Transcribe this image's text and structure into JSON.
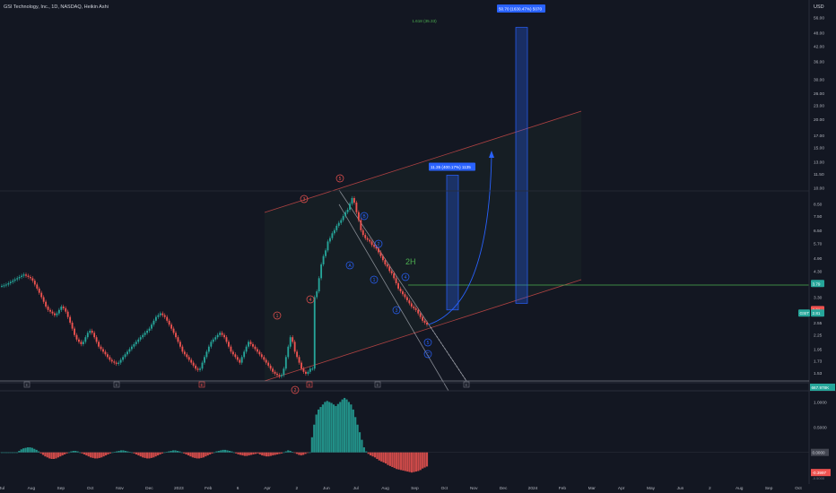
{
  "header": {
    "symbol_line": "GSI Technology, Inc., 1D, NASDAQ, Heikin Ashi",
    "currency": "USD"
  },
  "colors": {
    "background": "#131722",
    "up": "#26a69a",
    "down": "#ef5350",
    "wave": "#2962ff",
    "wave_red": "#ef5350",
    "target_line": "#4caf50",
    "tag_green": "#26a69a",
    "tag_red": "#ef5350",
    "label_blue": "#2962ff"
  },
  "chart_data": [
    {
      "type": "line",
      "subtype": "heikin-ashi candlestick (approximate closes)",
      "symbol": "GSIT",
      "scale": "log",
      "x_labels": [
        "Jul",
        "Aug",
        "Sep",
        "Oct",
        "Nov",
        "Dec",
        "2023",
        "Feb",
        "6",
        "Apr",
        "2",
        "Jun",
        "Jul",
        "Aug",
        "Sep",
        "Oct",
        "Nov",
        "Dec",
        "2024",
        "Feb",
        "Mar",
        "Apr",
        "May",
        "Jun",
        "2",
        "Aug",
        "Sep",
        "Oct"
      ],
      "y_ticks": [
        "56.00",
        "48.00",
        "42.00",
        "36.00",
        "30.00",
        "26.00",
        "23.00",
        "20.00",
        "17.00",
        "15.00",
        "13.00",
        "11.50",
        "10.00",
        "8.50",
        "7.50",
        "6.50",
        "5.70",
        "4.90",
        "4.30",
        "3.30",
        "2.55",
        "2.25",
        "1.95",
        "1.73",
        "1.53"
      ],
      "ylim": [
        1.35,
        60
      ],
      "closes": [
        3.7,
        3.72,
        3.75,
        3.8,
        3.85,
        3.9,
        3.95,
        4.0,
        4.05,
        4.1,
        4.15,
        4.1,
        4.05,
        4.0,
        3.9,
        3.75,
        3.6,
        3.45,
        3.3,
        3.15,
        3.0,
        2.9,
        2.85,
        2.8,
        2.75,
        2.8,
        2.9,
        3.0,
        2.95,
        2.85,
        2.7,
        2.55,
        2.4,
        2.25,
        2.15,
        2.1,
        2.05,
        2.1,
        2.2,
        2.3,
        2.35,
        2.3,
        2.2,
        2.1,
        2.0,
        1.95,
        1.9,
        1.85,
        1.8,
        1.75,
        1.72,
        1.7,
        1.68,
        1.7,
        1.75,
        1.8,
        1.85,
        1.9,
        1.95,
        2.0,
        2.05,
        2.1,
        2.15,
        2.2,
        2.25,
        2.3,
        2.35,
        2.4,
        2.5,
        2.6,
        2.7,
        2.75,
        2.8,
        2.75,
        2.7,
        2.6,
        2.5,
        2.4,
        2.3,
        2.2,
        2.1,
        2.0,
        1.9,
        1.85,
        1.8,
        1.75,
        1.7,
        1.65,
        1.6,
        1.58,
        1.6,
        1.7,
        1.8,
        1.9,
        2.0,
        2.1,
        2.15,
        2.2,
        2.25,
        2.3,
        2.25,
        2.2,
        2.1,
        2.0,
        1.9,
        1.85,
        1.8,
        1.75,
        1.7,
        1.8,
        1.9,
        2.0,
        2.1,
        2.05,
        2.0,
        1.95,
        1.9,
        1.85,
        1.8,
        1.75,
        1.7,
        1.65,
        1.6,
        1.55,
        1.52,
        1.5,
        1.48,
        1.5,
        1.6,
        1.8,
        2.0,
        2.2,
        2.1,
        1.9,
        1.8,
        1.7,
        1.6,
        1.55,
        1.52,
        1.55,
        1.6,
        1.6,
        3.3,
        3.5,
        4.0,
        4.6,
        5.0,
        5.3,
        5.8,
        6.0,
        6.3,
        6.5,
        6.8,
        7.0,
        7.2,
        7.5,
        7.8,
        8.0,
        8.5,
        9.0,
        8.6,
        7.8,
        7.2,
        6.5,
        6.2,
        6.0,
        5.9,
        5.8,
        5.6,
        5.5,
        5.4,
        5.2,
        5.0,
        4.8,
        4.6,
        4.5,
        4.3,
        4.2,
        4.0,
        3.8,
        3.6,
        3.5,
        3.4,
        3.3,
        3.2,
        3.1,
        3.0,
        2.95,
        2.9,
        2.8,
        2.7,
        2.6,
        2.55,
        2.5
      ],
      "wave_labels": [
        "1",
        "2",
        "3",
        "4",
        "5",
        "A",
        "B",
        "C",
        "1",
        "2",
        "3",
        "4",
        "5",
        "A",
        "B",
        "C"
      ],
      "annotations": [
        "2H",
        "1.618 (35.33)"
      ],
      "projections": [
        {
          "label": "11.35 (400.17%) 1135",
          "target": 11.35
        },
        {
          "label": "50.70 (1630.47%) 5070",
          "target": 50.7
        }
      ],
      "price_tags": [
        {
          "text": "3.79",
          "value": 3.79
        },
        {
          "text": "2.91",
          "value": 2.91
        },
        {
          "text": "2.81",
          "value": 2.81
        },
        {
          "text": "GSIT",
          "value": 2.81
        }
      ],
      "event_markers": [
        "E",
        "E",
        "E",
        "E",
        "E",
        "E"
      ],
      "volume_tag": "667.978K"
    },
    {
      "type": "bar",
      "subtype": "oscillator",
      "ylim": [
        -0.45,
        1.15
      ],
      "y_ticks": [
        "1.0000",
        "0.5000",
        "0.0000"
      ],
      "tags": [
        "0.0000",
        "-0.3997",
        "-0.5000"
      ],
      "values": [
        0.0,
        0.0,
        0.0,
        0.0,
        0.0,
        0.0,
        0.0,
        0.0,
        0.03,
        0.06,
        0.08,
        0.09,
        0.1,
        0.1,
        0.09,
        0.07,
        0.05,
        0.02,
        -0.02,
        -0.05,
        -0.08,
        -0.1,
        -0.12,
        -0.13,
        -0.13,
        -0.12,
        -0.1,
        -0.08,
        -0.06,
        -0.04,
        -0.02,
        0.0,
        0.02,
        0.03,
        0.03,
        0.02,
        0.0,
        -0.02,
        -0.04,
        -0.06,
        -0.08,
        -0.1,
        -0.11,
        -0.12,
        -0.12,
        -0.11,
        -0.1,
        -0.08,
        -0.06,
        -0.04,
        -0.02,
        0.0,
        0.01,
        0.02,
        0.03,
        0.04,
        0.04,
        0.03,
        0.02,
        0.01,
        0.0,
        -0.02,
        -0.04,
        -0.06,
        -0.08,
        -0.1,
        -0.11,
        -0.12,
        -0.12,
        -0.11,
        -0.1,
        -0.08,
        -0.06,
        -0.04,
        -0.02,
        0.0,
        0.01,
        0.02,
        0.03,
        0.04,
        0.04,
        0.03,
        0.02,
        0.0,
        -0.02,
        -0.04,
        -0.06,
        -0.08,
        -0.1,
        -0.11,
        -0.12,
        -0.12,
        -0.11,
        -0.1,
        -0.08,
        -0.06,
        -0.04,
        -0.02,
        0.0,
        0.02,
        0.03,
        0.04,
        0.05,
        0.05,
        0.04,
        0.03,
        0.02,
        0.0,
        -0.02,
        -0.04,
        -0.05,
        -0.06,
        -0.07,
        -0.07,
        -0.06,
        -0.05,
        -0.04,
        -0.03,
        -0.02,
        -0.04,
        -0.06,
        -0.07,
        -0.08,
        -0.08,
        -0.07,
        -0.06,
        -0.05,
        -0.04,
        -0.03,
        -0.02,
        0.0,
        0.02,
        0.04,
        0.03,
        0.01,
        -0.01,
        -0.03,
        -0.05,
        -0.06,
        -0.05,
        -0.03,
        -0.01,
        0.0,
        0.3,
        0.55,
        0.75,
        0.85,
        0.9,
        0.95,
        1.0,
        1.02,
        1.0,
        0.98,
        0.95,
        0.92,
        0.96,
        1.0,
        1.05,
        1.08,
        1.05,
        1.0,
        0.95,
        0.85,
        0.7,
        0.55,
        0.4,
        0.25,
        0.1,
        0.02,
        -0.03,
        -0.06,
        -0.08,
        -0.1,
        -0.13,
        -0.16,
        -0.18,
        -0.2,
        -0.22,
        -0.25,
        -0.27,
        -0.29,
        -0.31,
        -0.33,
        -0.34,
        -0.35,
        -0.36,
        -0.37,
        -0.38,
        -0.39,
        -0.4,
        -0.39,
        -0.38,
        -0.37,
        -0.35,
        -0.32,
        -0.3,
        -0.28
      ]
    }
  ]
}
